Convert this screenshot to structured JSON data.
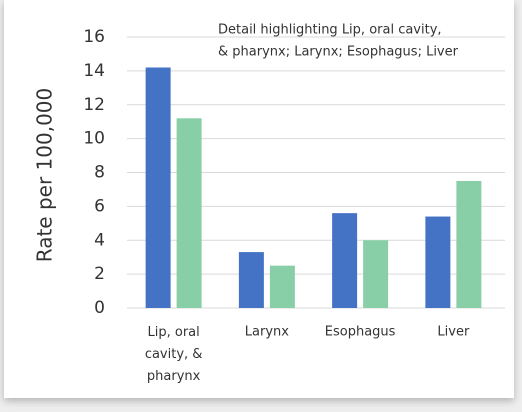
{
  "chart_data": {
    "type": "bar",
    "y_label": "Rate per 100,000",
    "annotation": [
      "Detail highlighting Lip, oral cavity,",
      "& pharynx; Larynx; Esophagus; Liver"
    ],
    "categories": [
      "Lip, oral cavity, & pharynx",
      "Larynx",
      "Esophagus",
      "Liver"
    ],
    "series": [
      {
        "color": "#4472c4",
        "values": [
          14.2,
          3.3,
          5.6,
          5.4
        ]
      },
      {
        "color": "#88cfa8",
        "values": [
          11.2,
          2.5,
          4.0,
          7.5
        ]
      }
    ],
    "ylim": [
      0,
      16
    ],
    "yticks": [
      0,
      2,
      4,
      6,
      8,
      10,
      12,
      14,
      16
    ],
    "grid": true
  }
}
